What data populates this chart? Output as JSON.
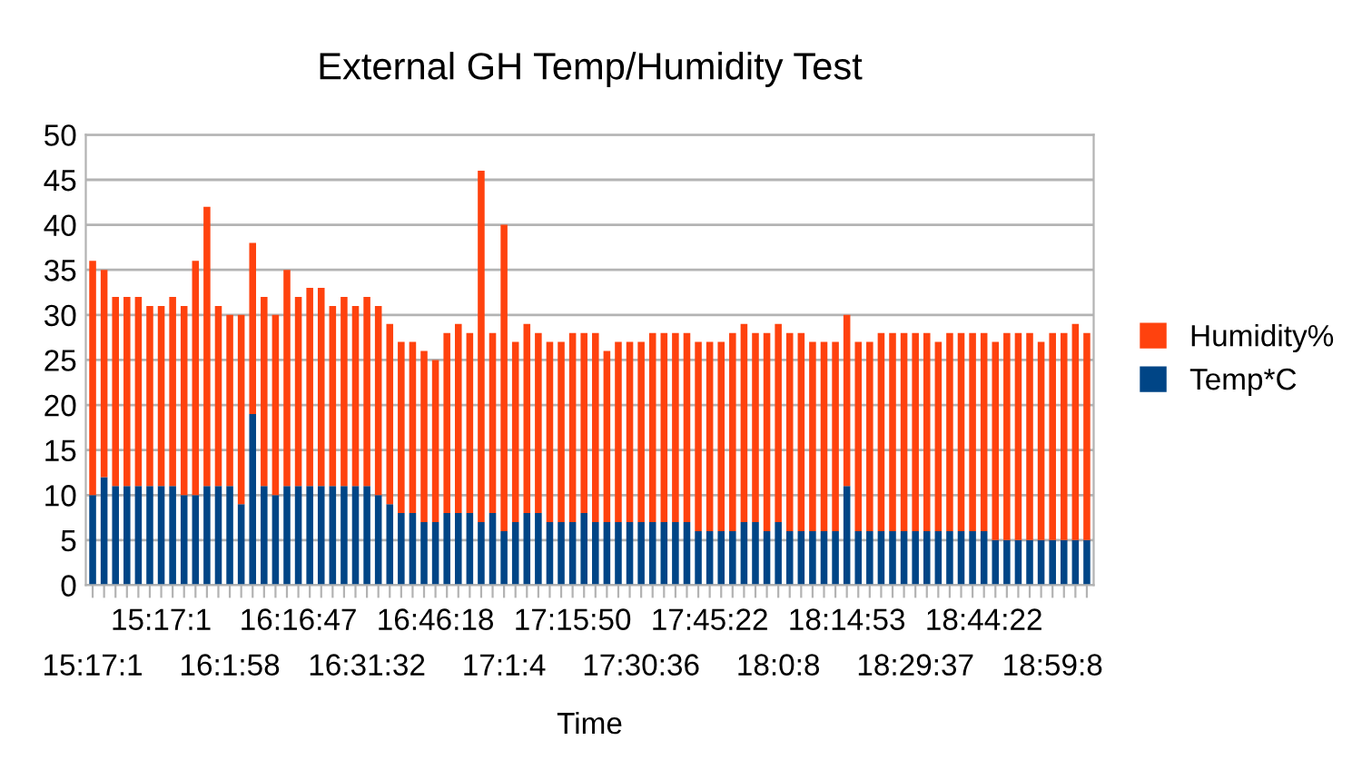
{
  "chart_data": {
    "type": "bar",
    "stacked": true,
    "title": "External GH Temp/Humidity Test",
    "xlabel": "Time",
    "categories": [
      "15:17:1",
      null,
      null,
      null,
      null,
      null,
      "15:17:1",
      null,
      null,
      null,
      null,
      null,
      "16:1:58",
      null,
      null,
      null,
      null,
      null,
      "16:16:47",
      null,
      null,
      null,
      null,
      null,
      "16:31:32",
      null,
      null,
      null,
      null,
      null,
      "16:46:18",
      null,
      null,
      null,
      null,
      null,
      "17:1:4",
      null,
      null,
      null,
      null,
      null,
      "17:15:50",
      null,
      null,
      null,
      null,
      null,
      "17:30:36",
      null,
      null,
      null,
      null,
      null,
      "17:45:22",
      null,
      null,
      null,
      null,
      null,
      "18:0:8",
      null,
      null,
      null,
      null,
      null,
      "18:14:53",
      null,
      null,
      null,
      null,
      null,
      "18:29:37",
      null,
      null,
      null,
      null,
      null,
      "18:44:22",
      null,
      null,
      null,
      null,
      null,
      "18:59:8",
      null,
      null,
      null
    ],
    "series": [
      {
        "name": "Temp*C",
        "color": "#004586",
        "values": [
          10,
          12,
          11,
          11,
          11,
          11,
          11,
          11,
          10,
          10,
          11,
          11,
          11,
          9,
          19,
          11,
          10,
          11,
          11,
          11,
          11,
          11,
          11,
          11,
          11,
          10,
          9,
          8,
          8,
          7,
          7,
          8,
          8,
          8,
          7,
          8,
          6,
          7,
          8,
          8,
          7,
          7,
          7,
          8,
          7,
          7,
          7,
          7,
          7,
          7,
          7,
          7,
          7,
          6,
          6,
          6,
          6,
          7,
          7,
          6,
          7,
          6,
          6,
          6,
          6,
          6,
          11,
          6,
          6,
          6,
          6,
          6,
          6,
          6,
          6,
          6,
          6,
          6,
          6,
          5,
          5,
          5,
          5,
          5,
          5,
          5,
          5,
          5
        ]
      },
      {
        "name": "Humidity%",
        "color": "#ff420e",
        "values": [
          26,
          23,
          21,
          21,
          21,
          20,
          20,
          21,
          21,
          26,
          31,
          20,
          19,
          21,
          19,
          21,
          20,
          24,
          21,
          22,
          22,
          20,
          21,
          20,
          21,
          21,
          20,
          19,
          19,
          19,
          18,
          20,
          21,
          20,
          39,
          20,
          34,
          20,
          21,
          20,
          20,
          20,
          21,
          20,
          21,
          19,
          20,
          20,
          20,
          21,
          21,
          21,
          21,
          21,
          21,
          21,
          22,
          22,
          21,
          22,
          22,
          22,
          22,
          21,
          21,
          21,
          19,
          21,
          21,
          22,
          22,
          22,
          22,
          22,
          21,
          22,
          22,
          22,
          22,
          22,
          23,
          23,
          23,
          22,
          23,
          23,
          24,
          23
        ]
      }
    ],
    "ylim": [
      0,
      50
    ],
    "yticks": [
      0,
      5,
      10,
      15,
      20,
      25,
      30,
      35,
      40,
      45,
      50
    ],
    "grid": "y",
    "legend": "right"
  }
}
